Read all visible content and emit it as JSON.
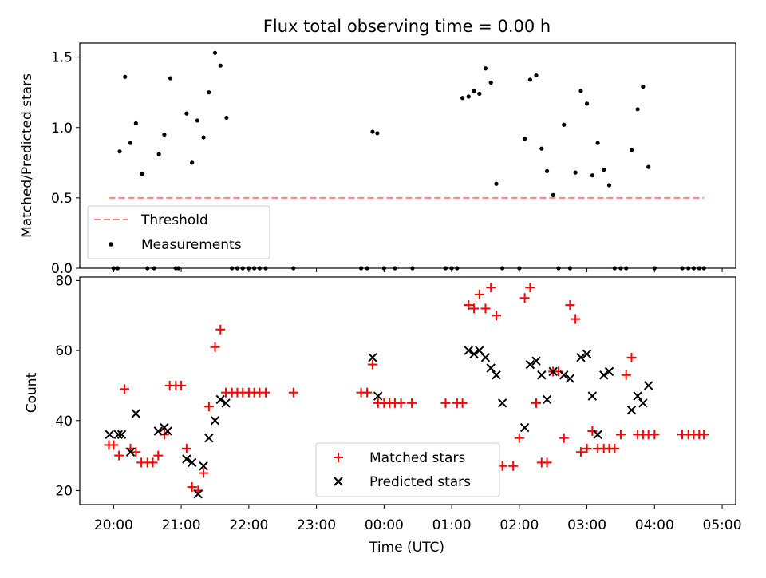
{
  "chart_data": [
    {
      "type": "scatter",
      "title": "Flux total observing time = 0.00 h",
      "xlabel": "",
      "ylabel": "Matched/Predicted stars",
      "xlim": [
        -0.5,
        9.2
      ],
      "ylim": [
        0,
        1.6
      ],
      "x_unit": "hours after 20:00 UTC",
      "yticks": [
        0.0,
        0.5,
        1.0,
        1.5
      ],
      "ytick_labels": [
        "0.0",
        "0.5",
        "1.0",
        "1.5"
      ],
      "legend": {
        "placement": "lower-left",
        "entries": [
          "Threshold",
          "Measurements"
        ]
      },
      "series": [
        {
          "name": "Threshold",
          "style": "dashed-line",
          "color": "#ff8080",
          "x": [
            -0.07,
            8.73
          ],
          "y": [
            0.5,
            0.5
          ]
        },
        {
          "name": "Measurements",
          "style": "dot",
          "color": "#000000",
          "x": [
            0.0,
            0.06,
            0.09,
            0.17,
            0.25,
            0.33,
            0.42,
            0.5,
            0.6,
            0.67,
            0.75,
            0.84,
            0.92,
            0.96,
            1.08,
            1.16,
            1.24,
            1.33,
            1.41,
            1.5,
            1.58,
            1.67,
            1.75,
            1.83,
            1.91,
            2.0,
            2.08,
            2.16,
            2.25,
            2.66,
            3.66,
            3.75,
            3.83,
            3.9,
            4.0,
            4.16,
            4.42,
            4.91,
            5.0,
            5.08,
            5.16,
            5.25,
            5.33,
            5.41,
            5.5,
            5.58,
            5.66,
            5.75,
            6.0,
            6.08,
            6.16,
            6.25,
            6.33,
            6.41,
            6.5,
            6.58,
            6.66,
            6.75,
            6.83,
            6.91,
            7.0,
            7.08,
            7.16,
            7.25,
            7.33,
            7.41,
            7.5,
            7.58,
            7.66,
            7.75,
            7.83,
            7.91,
            8.0,
            8.41,
            8.5,
            8.58,
            8.66,
            8.73
          ],
          "y": [
            0,
            0,
            0.83,
            1.36,
            0.89,
            1.03,
            0.67,
            0,
            0,
            0.81,
            0.95,
            1.35,
            0,
            0,
            1.1,
            0.75,
            1.05,
            0.93,
            1.25,
            1.53,
            1.44,
            1.07,
            0,
            0,
            0,
            0,
            0,
            0,
            0,
            0,
            0,
            0,
            0.97,
            0.96,
            0,
            0,
            0,
            0,
            0,
            0,
            1.21,
            1.22,
            1.26,
            1.24,
            1.42,
            1.32,
            0.6,
            0,
            0,
            0.92,
            1.34,
            1.37,
            0.85,
            0.69,
            0.52,
            0,
            1.02,
            0,
            0.68,
            1.26,
            1.17,
            0.66,
            0.89,
            0.7,
            0.59,
            0,
            0,
            0,
            0.84,
            1.13,
            1.29,
            0.72,
            0,
            0,
            0,
            0,
            0,
            0
          ]
        }
      ]
    },
    {
      "type": "scatter",
      "title": "",
      "xlabel": "Time (UTC)",
      "ylabel": "Count",
      "xlim": [
        -0.5,
        9.2
      ],
      "ylim": [
        16,
        81
      ],
      "x_unit": "hours after 20:00 UTC",
      "yticks": [
        20,
        40,
        60,
        80
      ],
      "ytick_labels": [
        "20",
        "40",
        "60",
        "80"
      ],
      "xticks": [
        0,
        1,
        2,
        3,
        4,
        5,
        6,
        7,
        8,
        9
      ],
      "xtick_labels": [
        "20:00",
        "21:00",
        "22:00",
        "23:00",
        "00:00",
        "01:00",
        "02:00",
        "03:00",
        "04:00",
        "05:00"
      ],
      "legend": {
        "placement": "lower-center",
        "entries": [
          "Matched stars",
          "Predicted stars"
        ]
      },
      "series": [
        {
          "name": "Matched stars",
          "marker": "plus",
          "color": "#ff0000",
          "x": [
            -0.07,
            0.0,
            0.08,
            0.16,
            0.25,
            0.33,
            0.41,
            0.5,
            0.58,
            0.66,
            0.75,
            0.83,
            0.92,
            1.0,
            1.08,
            1.16,
            1.25,
            1.33,
            1.41,
            1.5,
            1.58,
            1.66,
            1.75,
            1.83,
            1.91,
            2.0,
            2.08,
            2.16,
            2.25,
            2.66,
            3.66,
            3.75,
            3.83,
            3.91,
            4.0,
            4.08,
            4.16,
            4.25,
            4.41,
            4.91,
            5.08,
            5.16,
            5.25,
            5.33,
            5.41,
            5.5,
            5.58,
            5.66,
            5.75,
            5.91,
            6.0,
            6.08,
            6.16,
            6.25,
            6.33,
            6.41,
            6.5,
            6.58,
            6.66,
            6.75,
            6.83,
            6.91,
            7.0,
            7.08,
            7.16,
            7.25,
            7.33,
            7.41,
            7.5,
            7.58,
            7.66,
            7.75,
            7.83,
            7.91,
            8.0,
            8.41,
            8.5,
            8.58,
            8.66,
            8.73
          ],
          "y": [
            33,
            33,
            30,
            49,
            32,
            31,
            28,
            28,
            28,
            30,
            36,
            50,
            50,
            50,
            32,
            21,
            20,
            25,
            44,
            61,
            66,
            48,
            48,
            48,
            48,
            48,
            48,
            48,
            48,
            48,
            48,
            48,
            56,
            45,
            45,
            45,
            45,
            45,
            45,
            45,
            45,
            45,
            73,
            72,
            76,
            72,
            78,
            70,
            27,
            27,
            35,
            75,
            78,
            45,
            28,
            28,
            54,
            54,
            35,
            73,
            69,
            31,
            32,
            37,
            32,
            32,
            32,
            32,
            36,
            53,
            58,
            36,
            36,
            36,
            36,
            36,
            36,
            36,
            36,
            36
          ]
        },
        {
          "name": "Predicted stars",
          "marker": "x",
          "color": "#000000",
          "x": [
            -0.06,
            0.07,
            0.12,
            0.25,
            0.33,
            0.66,
            0.75,
            0.8,
            1.08,
            1.16,
            1.25,
            1.33,
            1.41,
            1.5,
            1.58,
            1.66,
            3.83,
            3.91,
            5.25,
            5.33,
            5.41,
            5.5,
            5.58,
            5.66,
            5.75,
            6.08,
            6.16,
            6.25,
            6.33,
            6.41,
            6.5,
            6.66,
            6.75,
            6.91,
            7.0,
            7.08,
            7.16,
            7.25,
            7.33,
            7.66,
            7.75,
            7.83,
            7.91
          ],
          "y": [
            36,
            36,
            36,
            31,
            42,
            37,
            38,
            37,
            29,
            28,
            19,
            27,
            35,
            40,
            46,
            45,
            58,
            47,
            60,
            59,
            60,
            58,
            55,
            53,
            45,
            38,
            56,
            57,
            53,
            46,
            54,
            53,
            52,
            58,
            59,
            47,
            36,
            53,
            54,
            43,
            47,
            45,
            50
          ]
        }
      ]
    }
  ]
}
